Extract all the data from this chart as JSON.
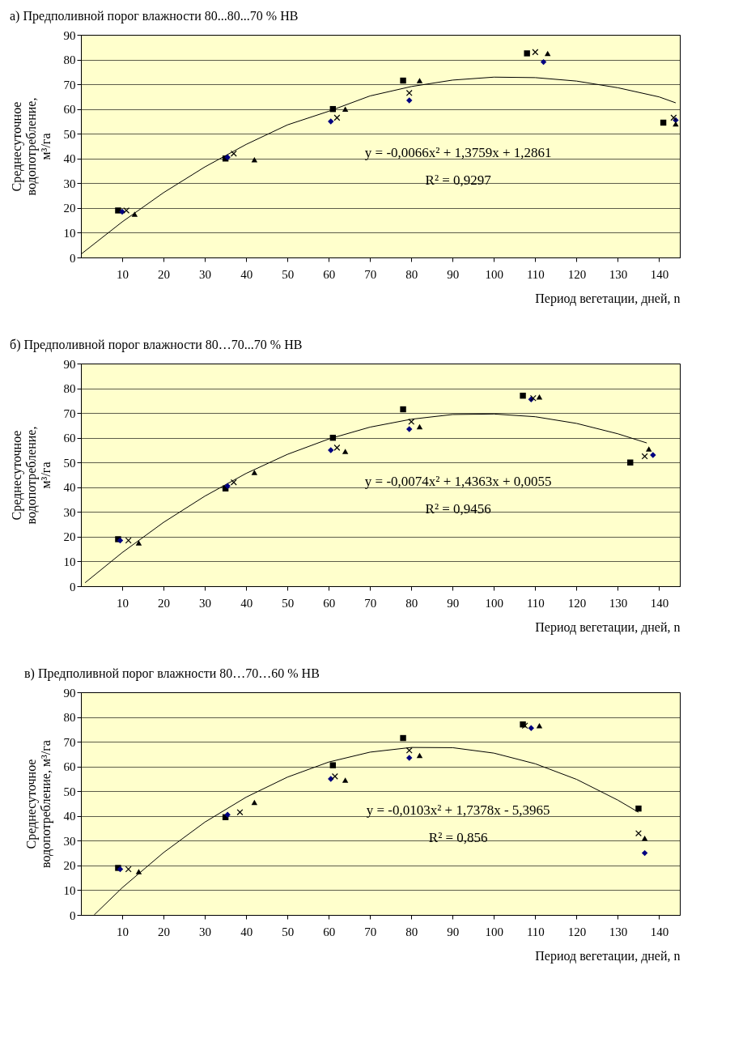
{
  "chart_data": [
    {
      "type": "scatter",
      "title": "а) Предполивной порог влажности 80...80...70 % НВ",
      "xlabel": "Период вегетации, дней, n",
      "ylabel": "Среднесуточное\nводопотребление,\nм³/га",
      "xlim": [
        0,
        145
      ],
      "ylim": [
        0,
        90
      ],
      "xticks": [
        10,
        20,
        30,
        40,
        50,
        60,
        70,
        80,
        90,
        100,
        110,
        120,
        130,
        140
      ],
      "yticks": [
        0,
        10,
        20,
        30,
        40,
        50,
        60,
        70,
        80,
        90
      ],
      "grid": "y",
      "series": [
        {
          "marker": "square",
          "color": "#000000",
          "x": [
            9,
            35,
            61,
            78,
            108,
            141
          ],
          "values": [
            19,
            40,
            60,
            71.5,
            82.5,
            54.5
          ]
        },
        {
          "marker": "diamond",
          "color": "#000080",
          "x": [
            10,
            35.5,
            60.5,
            79.5,
            112,
            144
          ],
          "values": [
            18.5,
            40.5,
            55,
            63.5,
            79,
            55.5
          ]
        },
        {
          "marker": "cross",
          "color": "#000000",
          "x": [
            11,
            37,
            62,
            79.5,
            110,
            143.5
          ],
          "values": [
            19,
            42,
            56.5,
            66.5,
            83,
            56.5
          ]
        },
        {
          "marker": "triangle",
          "color": "#000000",
          "x": [
            13,
            42,
            64,
            82,
            113,
            144
          ],
          "values": [
            17.5,
            39.5,
            60,
            71.5,
            82.5,
            54
          ]
        },
        {
          "type": "line",
          "marker": "none",
          "color": "#000000",
          "x": [
            0,
            10,
            20,
            30,
            40,
            50,
            60,
            70,
            80,
            90,
            100,
            110,
            120,
            130,
            140,
            144
          ],
          "values": [
            1.3,
            14.4,
            26.2,
            36.6,
            45.7,
            53.6,
            59.1,
            65.3,
            69.1,
            71.7,
            72.9,
            72.7,
            71.3,
            68.6,
            64.9,
            62.5
          ]
        }
      ],
      "annotations": [
        "y = -0,0066x² + 1,3759x + 1,2861",
        "R² = 0,9297"
      ]
    },
    {
      "type": "scatter",
      "title": "б) Предполивной порог влажности 80…70...70 % НВ",
      "xlabel": "Период вегетации, дней, n",
      "ylabel": "Среднесуточное\nводопотребление,\nм³/га",
      "xlim": [
        0,
        145
      ],
      "ylim": [
        0,
        90
      ],
      "xticks": [
        10,
        20,
        30,
        40,
        50,
        60,
        70,
        80,
        90,
        100,
        110,
        120,
        130,
        140
      ],
      "yticks": [
        0,
        10,
        20,
        30,
        40,
        50,
        60,
        70,
        80,
        90
      ],
      "grid": "y",
      "series": [
        {
          "marker": "square",
          "color": "#000000",
          "x": [
            9,
            35,
            61,
            78,
            107,
            133
          ],
          "values": [
            19,
            39.5,
            60,
            71.5,
            77,
            50
          ]
        },
        {
          "marker": "diamond",
          "color": "#000080",
          "x": [
            9.5,
            35.5,
            60.5,
            79.5,
            109,
            138.5
          ],
          "values": [
            18.5,
            40.5,
            55,
            63.5,
            75.5,
            53
          ]
        },
        {
          "marker": "cross",
          "color": "#000000",
          "x": [
            11.5,
            37,
            62,
            80,
            109.5,
            136.5
          ],
          "values": [
            18.5,
            42,
            56,
            66.5,
            76,
            52.5
          ]
        },
        {
          "marker": "triangle",
          "color": "#000000",
          "x": [
            14,
            42,
            64,
            82,
            111,
            137.5
          ],
          "values": [
            17.5,
            46,
            54.5,
            64.5,
            76.5,
            55.5
          ]
        },
        {
          "type": "line",
          "marker": "none",
          "color": "#000000",
          "x": [
            1,
            10,
            20,
            30,
            40,
            50,
            60,
            70,
            80,
            90,
            100,
            110,
            120,
            130,
            137
          ],
          "values": [
            1.4,
            13.6,
            25.8,
            36.4,
            45.6,
            53.3,
            59.5,
            64.3,
            67.5,
            69.4,
            69.6,
            68.5,
            65.8,
            61.6,
            57.9
          ]
        }
      ],
      "annotations": [
        "y = -0,0074x² + 1,4363x + 0,0055",
        "R² = 0,9456"
      ]
    },
    {
      "type": "scatter",
      "title": "в) Предполивной порог влажности 80…70…60 % НВ",
      "xlabel": "Период вегетации, дней, n",
      "ylabel": "Среднесуточное\nводопотребление, м³/га",
      "xlim": [
        0,
        145
      ],
      "ylim": [
        0,
        90
      ],
      "xticks": [
        10,
        20,
        30,
        40,
        50,
        60,
        70,
        80,
        90,
        100,
        110,
        120,
        130,
        140
      ],
      "yticks": [
        0,
        10,
        20,
        30,
        40,
        50,
        60,
        70,
        80,
        90
      ],
      "grid": "y",
      "series": [
        {
          "marker": "square",
          "color": "#000000",
          "x": [
            9,
            35,
            61,
            78,
            107,
            135
          ],
          "values": [
            19,
            39.5,
            60.5,
            71.5,
            77,
            43
          ]
        },
        {
          "marker": "diamond",
          "color": "#000080",
          "x": [
            9.5,
            35.5,
            60.5,
            79.5,
            109,
            136.5
          ],
          "values": [
            18.5,
            40.5,
            55,
            63.5,
            75.5,
            25
          ]
        },
        {
          "marker": "cross",
          "color": "#000000",
          "x": [
            11.5,
            38.5,
            61.5,
            79.5,
            107.5,
            135
          ],
          "values": [
            18.5,
            41.5,
            56,
            66.5,
            76.5,
            33
          ]
        },
        {
          "marker": "triangle",
          "color": "#000000",
          "x": [
            14,
            42,
            64,
            82,
            111,
            136.5
          ],
          "values": [
            17.5,
            45.5,
            54.5,
            64.5,
            76.5,
            31
          ]
        },
        {
          "type": "line",
          "marker": "none",
          "color": "#000000",
          "x": [
            3.2,
            10,
            20,
            30,
            40,
            50,
            60,
            70,
            80,
            90,
            100,
            110,
            120,
            130,
            135
          ],
          "values": [
            0,
            11,
            25.2,
            37.5,
            47.6,
            55.7,
            61.8,
            65.8,
            67.7,
            67.6,
            65.4,
            61.1,
            54.8,
            46.4,
            41.5
          ]
        }
      ],
      "annotations": [
        "y = -0,0103x² + 1,7378x - 5,3965",
        "R² = 0,856"
      ]
    }
  ]
}
